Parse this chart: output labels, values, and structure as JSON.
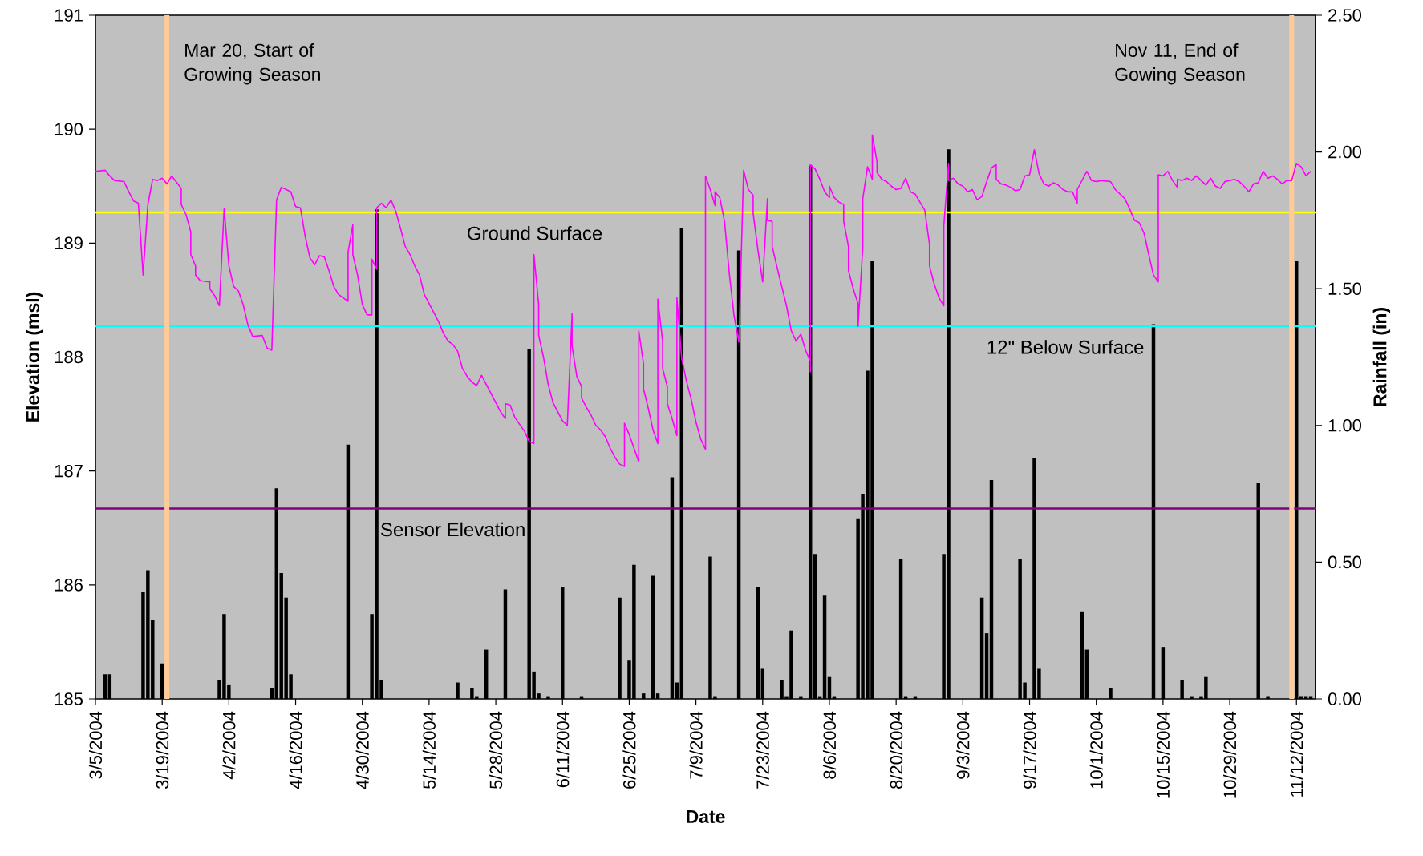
{
  "chart_data": {
    "type": "line",
    "xlabel": "Date",
    "ylabel": "Elevation (msl)",
    "y2label": "Rainfall (in)",
    "xlim": [
      "2004-03-05",
      "2004-11-16"
    ],
    "xticks": [
      {
        "value": "2004-03-05",
        "label": "3/5/2004"
      },
      {
        "value": "2004-03-19",
        "label": "3/19/2004"
      },
      {
        "value": "2004-04-02",
        "label": "4/2/2004"
      },
      {
        "value": "2004-04-16",
        "label": "4/16/2004"
      },
      {
        "value": "2004-04-30",
        "label": "4/30/2004"
      },
      {
        "value": "2004-05-14",
        "label": "5/14/2004"
      },
      {
        "value": "2004-05-28",
        "label": "5/28/2004"
      },
      {
        "value": "2004-06-11",
        "label": "6/11/2004"
      },
      {
        "value": "2004-06-25",
        "label": "6/25/2004"
      },
      {
        "value": "2004-07-09",
        "label": "7/9/2004"
      },
      {
        "value": "2004-07-23",
        "label": "7/23/2004"
      },
      {
        "value": "2004-08-06",
        "label": "8/6/2004"
      },
      {
        "value": "2004-08-20",
        "label": "8/20/2004"
      },
      {
        "value": "2004-09-03",
        "label": "9/3/2004"
      },
      {
        "value": "2004-09-17",
        "label": "9/17/2004"
      },
      {
        "value": "2004-10-01",
        "label": "10/1/2004"
      },
      {
        "value": "2004-10-15",
        "label": "10/15/2004"
      },
      {
        "value": "2004-10-29",
        "label": "10/29/2004"
      },
      {
        "value": "2004-11-12",
        "label": "11/12/2004"
      }
    ],
    "ylim": [
      185,
      191
    ],
    "yticks": [
      185,
      186,
      187,
      188,
      189,
      190,
      191
    ],
    "y2lim": [
      0,
      2.5
    ],
    "y2ticks": [
      {
        "value": 0,
        "label": "0.00"
      },
      {
        "value": 0.5,
        "label": "0.50"
      },
      {
        "value": 1,
        "label": "1.00"
      },
      {
        "value": 1.5,
        "label": "1.50"
      },
      {
        "value": 2,
        "label": "2.00"
      },
      {
        "value": 2.5,
        "label": "2.50"
      }
    ],
    "ref_lines": [
      {
        "axis": "y",
        "value": 189.27,
        "label": "Ground Surface",
        "color": "#ffff00"
      },
      {
        "axis": "y",
        "value": 188.27,
        "label": "12\" Below Surface",
        "color": "#00ffff"
      },
      {
        "axis": "y",
        "value": 186.67,
        "label": "Sensor Elevation",
        "color": "#800080"
      },
      {
        "axis": "x",
        "value": "2004-03-20",
        "label": "Mar 20, Start of Growing Season",
        "color": "#ffcc99"
      },
      {
        "axis": "x",
        "value": "2004-11-11",
        "label": "Nov 11, End of Gowing Season",
        "color": "#ffcc99"
      }
    ],
    "series": [
      {
        "type": "bar",
        "axis": "y2",
        "color": "#000000",
        "x": [
          "2004-03-07",
          "2004-03-08",
          "2004-03-15",
          "2004-03-16",
          "2004-03-17",
          "2004-03-19",
          "2004-03-31",
          "2004-04-01",
          "2004-04-02",
          "2004-04-11",
          "2004-04-12",
          "2004-04-13",
          "2004-04-14",
          "2004-04-15",
          "2004-04-27",
          "2004-05-02",
          "2004-05-03",
          "2004-05-04",
          "2004-05-20",
          "2004-05-23",
          "2004-05-24",
          "2004-05-26",
          "2004-05-30",
          "2004-06-04",
          "2004-06-05",
          "2004-06-06",
          "2004-06-08",
          "2004-06-11",
          "2004-06-15",
          "2004-06-23",
          "2004-06-25",
          "2004-06-26",
          "2004-06-28",
          "2004-06-30",
          "2004-07-01",
          "2004-07-04",
          "2004-07-05",
          "2004-07-06",
          "2004-07-12",
          "2004-07-13",
          "2004-07-18",
          "2004-07-22",
          "2004-07-23",
          "2004-07-27",
          "2004-07-28",
          "2004-07-29",
          "2004-07-31",
          "2004-08-02",
          "2004-08-03",
          "2004-08-04",
          "2004-08-05",
          "2004-08-06",
          "2004-08-07",
          "2004-08-12",
          "2004-08-13",
          "2004-08-14",
          "2004-08-15",
          "2004-08-21",
          "2004-08-22",
          "2004-08-24",
          "2004-08-30",
          "2004-08-31",
          "2004-09-07",
          "2004-09-08",
          "2004-09-09",
          "2004-09-15",
          "2004-09-16",
          "2004-09-18",
          "2004-09-19",
          "2004-09-28",
          "2004-09-29",
          "2004-10-04",
          "2004-10-13",
          "2004-10-15",
          "2004-10-19",
          "2004-10-21",
          "2004-10-23",
          "2004-10-24",
          "2004-11-04",
          "2004-11-06",
          "2004-11-12",
          "2004-11-13",
          "2004-11-14",
          "2004-11-15"
        ],
        "values": [
          0.09,
          0.09,
          0.39,
          0.47,
          0.29,
          0.13,
          0.07,
          0.31,
          0.05,
          0.04,
          0.77,
          0.46,
          0.37,
          0.09,
          0.93,
          0.31,
          1.79,
          0.07,
          0.06,
          0.04,
          0.01,
          0.18,
          0.4,
          1.28,
          0.1,
          0.02,
          0.01,
          0.41,
          0.01,
          0.37,
          0.14,
          0.49,
          0.02,
          0.45,
          0.02,
          0.81,
          0.06,
          1.72,
          0.52,
          0.01,
          1.64,
          0.41,
          0.11,
          0.07,
          0.01,
          0.25,
          0.01,
          1.95,
          0.53,
          0.01,
          0.38,
          0.08,
          0.01,
          0.66,
          0.75,
          1.2,
          1.6,
          0.51,
          0.01,
          0.01,
          0.53,
          2.01,
          0.37,
          0.24,
          0.8,
          0.51,
          0.06,
          0.88,
          0.11,
          0.32,
          0.18,
          0.04,
          1.37,
          0.19,
          0.07,
          0.01,
          0.01,
          0.08,
          0.79,
          0.01,
          1.6,
          0.01,
          0.01,
          0.01
        ]
      },
      {
        "color": "#ff00ff",
        "x": [
          "2004-03-05",
          "2004-03-07",
          "2004-03-08",
          "2004-03-09",
          "2004-03-11",
          "2004-03-12",
          "2004-03-13",
          "2004-03-14",
          "2004-03-15",
          "2004-03-16",
          "2004-03-17",
          "2004-03-18",
          "2004-03-19",
          "2004-03-20",
          "2004-03-21",
          "2004-03-23",
          "2004-03-23",
          "2004-03-24",
          "2004-03-25",
          "2004-03-25",
          "2004-03-26",
          "2004-03-26",
          "2004-03-27",
          "2004-03-29",
          "2004-03-29",
          "2004-03-30",
          "2004-03-31",
          "2004-04-01",
          "2004-04-02",
          "2004-04-03",
          "2004-04-04",
          "2004-04-05",
          "2004-04-06",
          "2004-04-07",
          "2004-04-09",
          "2004-04-10",
          "2004-04-11",
          "2004-04-12",
          "2004-04-13",
          "2004-04-15",
          "2004-04-16",
          "2004-04-17",
          "2004-04-18",
          "2004-04-19",
          "2004-04-20",
          "2004-04-21",
          "2004-04-22",
          "2004-04-23",
          "2004-04-24",
          "2004-04-25",
          "2004-04-26",
          "2004-04-27",
          "2004-04-27",
          "2004-04-28",
          "2004-04-28",
          "2004-04-29",
          "2004-04-30",
          "2004-05-01",
          "2004-05-02",
          "2004-05-02",
          "2004-05-03",
          "2004-05-03",
          "2004-05-04",
          "2004-05-05",
          "2004-05-06",
          "2004-05-07",
          "2004-05-08",
          "2004-05-09",
          "2004-05-10",
          "2004-05-11",
          "2004-05-12",
          "2004-05-13",
          "2004-05-14",
          "2004-05-15",
          "2004-05-16",
          "2004-05-17",
          "2004-05-18",
          "2004-05-19",
          "2004-05-20",
          "2004-05-21",
          "2004-05-22",
          "2004-05-23",
          "2004-05-24",
          "2004-05-25",
          "2004-05-26",
          "2004-05-27",
          "2004-05-28",
          "2004-05-29",
          "2004-05-30",
          "2004-05-30",
          "2004-05-31",
          "2004-06-01",
          "2004-06-02",
          "2004-06-03",
          "2004-06-04",
          "2004-06-05",
          "2004-06-05",
          "2004-06-06",
          "2004-06-06",
          "2004-06-07",
          "2004-06-08",
          "2004-06-09",
          "2004-06-10",
          "2004-06-11",
          "2004-06-12",
          "2004-06-13",
          "2004-06-13",
          "2004-06-14",
          "2004-06-15",
          "2004-06-15",
          "2004-06-16",
          "2004-06-17",
          "2004-06-18",
          "2004-06-19",
          "2004-06-20",
          "2004-06-21",
          "2004-06-22",
          "2004-06-23",
          "2004-06-24",
          "2004-06-24",
          "2004-06-25",
          "2004-06-26",
          "2004-06-27",
          "2004-06-27",
          "2004-06-28",
          "2004-06-28",
          "2004-06-29",
          "2004-06-30",
          "2004-07-01",
          "2004-07-01",
          "2004-07-02",
          "2004-07-02",
          "2004-07-03",
          "2004-07-03",
          "2004-07-04",
          "2004-07-05",
          "2004-07-05",
          "2004-07-06",
          "2004-07-07",
          "2004-07-08",
          "2004-07-09",
          "2004-07-10",
          "2004-07-11",
          "2004-07-11",
          "2004-07-12",
          "2004-07-13",
          "2004-07-13",
          "2004-07-14",
          "2004-07-15",
          "2004-07-16",
          "2004-07-17",
          "2004-07-18",
          "2004-07-19",
          "2004-07-20",
          "2004-07-21",
          "2004-07-21",
          "2004-07-22",
          "2004-07-23",
          "2004-07-24",
          "2004-07-24",
          "2004-07-25",
          "2004-07-25",
          "2004-07-26",
          "2004-07-27",
          "2004-07-28",
          "2004-07-29",
          "2004-07-30",
          "2004-07-31",
          "2004-08-01",
          "2004-08-02",
          "2004-08-02",
          "2004-08-02",
          "2004-08-03",
          "2004-08-04",
          "2004-08-05",
          "2004-08-06",
          "2004-08-06",
          "2004-08-07",
          "2004-08-08",
          "2004-08-09",
          "2004-08-09",
          "2004-08-10",
          "2004-08-10",
          "2004-08-11",
          "2004-08-12",
          "2004-08-12",
          "2004-08-13",
          "2004-08-13",
          "2004-08-14",
          "2004-08-15",
          "2004-08-15",
          "2004-08-16",
          "2004-08-16",
          "2004-08-17",
          "2004-08-18",
          "2004-08-19",
          "2004-08-20",
          "2004-08-21",
          "2004-08-22",
          "2004-08-23",
          "2004-08-24",
          "2004-08-25",
          "2004-08-26",
          "2004-08-27",
          "2004-08-27",
          "2004-08-28",
          "2004-08-29",
          "2004-08-30",
          "2004-08-30",
          "2004-08-31",
          "2004-08-31",
          "2004-09-01",
          "2004-09-02",
          "2004-09-03",
          "2004-09-04",
          "2004-09-05",
          "2004-09-06",
          "2004-09-07",
          "2004-09-08",
          "2004-09-09",
          "2004-09-10",
          "2004-09-10",
          "2004-09-11",
          "2004-09-12",
          "2004-09-13",
          "2004-09-14",
          "2004-09-15",
          "2004-09-16",
          "2004-09-17",
          "2004-09-18",
          "2004-09-19",
          "2004-09-20",
          "2004-09-21",
          "2004-09-22",
          "2004-09-23",
          "2004-09-24",
          "2004-09-25",
          "2004-09-26",
          "2004-09-27",
          "2004-09-27",
          "2004-09-29",
          "2004-09-30",
          "2004-10-01",
          "2004-10-02",
          "2004-10-04",
          "2004-10-05",
          "2004-10-06",
          "2004-10-07",
          "2004-10-08",
          "2004-10-09",
          "2004-10-10",
          "2004-10-11",
          "2004-10-12",
          "2004-10-13",
          "2004-10-14",
          "2004-10-14",
          "2004-10-15",
          "2004-10-16",
          "2004-10-17",
          "2004-10-18",
          "2004-10-18",
          "2004-10-19",
          "2004-10-20",
          "2004-10-21",
          "2004-10-22",
          "2004-10-23",
          "2004-10-24",
          "2004-10-25",
          "2004-10-26",
          "2004-10-27",
          "2004-10-28",
          "2004-10-29",
          "2004-10-30",
          "2004-10-31",
          "2004-11-01",
          "2004-11-02",
          "2004-11-03",
          "2004-11-04",
          "2004-11-05",
          "2004-11-06",
          "2004-11-07",
          "2004-11-08",
          "2004-11-09",
          "2004-11-10",
          "2004-11-11",
          "2004-11-12",
          "2004-11-13",
          "2004-11-14",
          "2004-11-15"
        ],
        "values": [
          189.63,
          189.64,
          189.59,
          189.55,
          189.54,
          189.45,
          189.37,
          189.35,
          188.72,
          189.34,
          189.56,
          189.55,
          189.57,
          189.52,
          189.59,
          189.48,
          189.34,
          189.25,
          189.1,
          188.9,
          188.8,
          188.72,
          188.67,
          188.66,
          188.6,
          188.54,
          188.45,
          189.3,
          188.8,
          188.62,
          188.58,
          188.46,
          188.28,
          188.18,
          188.19,
          188.08,
          188.06,
          189.38,
          189.49,
          189.45,
          189.32,
          189.31,
          189.06,
          188.87,
          188.81,
          188.89,
          188.88,
          188.76,
          188.62,
          188.55,
          188.52,
          188.49,
          188.92,
          189.16,
          188.9,
          188.72,
          188.46,
          188.37,
          188.37,
          188.86,
          188.77,
          189.31,
          189.35,
          189.31,
          189.38,
          189.28,
          189.13,
          188.97,
          188.9,
          188.8,
          188.72,
          188.55,
          188.47,
          188.39,
          188.31,
          188.21,
          188.14,
          188.11,
          188.05,
          187.9,
          187.83,
          187.78,
          187.75,
          187.84,
          187.76,
          187.68,
          187.6,
          187.52,
          187.46,
          187.59,
          187.58,
          187.47,
          187.41,
          187.35,
          187.26,
          187.24,
          188.9,
          188.46,
          188.19,
          188.0,
          187.76,
          187.6,
          187.52,
          187.44,
          187.4,
          188.38,
          188.1,
          187.83,
          187.74,
          187.64,
          187.56,
          187.49,
          187.4,
          187.36,
          187.3,
          187.2,
          187.12,
          187.06,
          187.04,
          187.42,
          187.32,
          187.2,
          187.08,
          188.23,
          187.94,
          187.72,
          187.55,
          187.36,
          187.24,
          188.51,
          188.14,
          187.9,
          187.74,
          187.59,
          187.46,
          187.31,
          188.52,
          187.99,
          187.79,
          187.63,
          187.43,
          187.28,
          187.19,
          189.59,
          189.47,
          189.33,
          189.45,
          189.4,
          189.19,
          188.73,
          188.36,
          188.13,
          189.64,
          189.47,
          189.42,
          189.26,
          188.94,
          188.66,
          189.39,
          189.2,
          189.19,
          188.97,
          188.79,
          188.62,
          188.45,
          188.23,
          188.14,
          188.2,
          188.06,
          187.96,
          187.87,
          189.69,
          189.65,
          189.56,
          189.45,
          189.4,
          189.5,
          189.4,
          189.36,
          189.34,
          189.19,
          188.97,
          188.76,
          188.6,
          188.47,
          188.27,
          188.96,
          189.39,
          189.67,
          189.56,
          189.95,
          189.71,
          189.62,
          189.56,
          189.54,
          189.5,
          189.47,
          189.48,
          189.57,
          189.45,
          189.43,
          189.36,
          189.29,
          188.99,
          188.8,
          188.64,
          188.52,
          188.45,
          189.15,
          189.7,
          189.55,
          189.57,
          189.52,
          189.5,
          189.45,
          189.47,
          189.38,
          189.41,
          189.54,
          189.66,
          189.69,
          189.56,
          189.52,
          189.51,
          189.49,
          189.46,
          189.47,
          189.59,
          189.6,
          189.82,
          189.61,
          189.52,
          189.5,
          189.53,
          189.51,
          189.47,
          189.45,
          189.45,
          189.35,
          189.47,
          189.63,
          189.55,
          189.54,
          189.55,
          189.54,
          189.47,
          189.43,
          189.39,
          189.3,
          189.2,
          189.18,
          189.09,
          188.9,
          188.72,
          188.66,
          189.6,
          189.59,
          189.63,
          189.55,
          189.49,
          189.56,
          189.55,
          189.57,
          189.55,
          189.59,
          189.55,
          189.51,
          189.57,
          189.5,
          189.48,
          189.54,
          189.55,
          189.56,
          189.54,
          189.5,
          189.45,
          189.52,
          189.53,
          189.63,
          189.57,
          189.59,
          189.56,
          189.52,
          189.55,
          189.55,
          189.7,
          189.67,
          189.59,
          189.63
        ]
      }
    ]
  }
}
